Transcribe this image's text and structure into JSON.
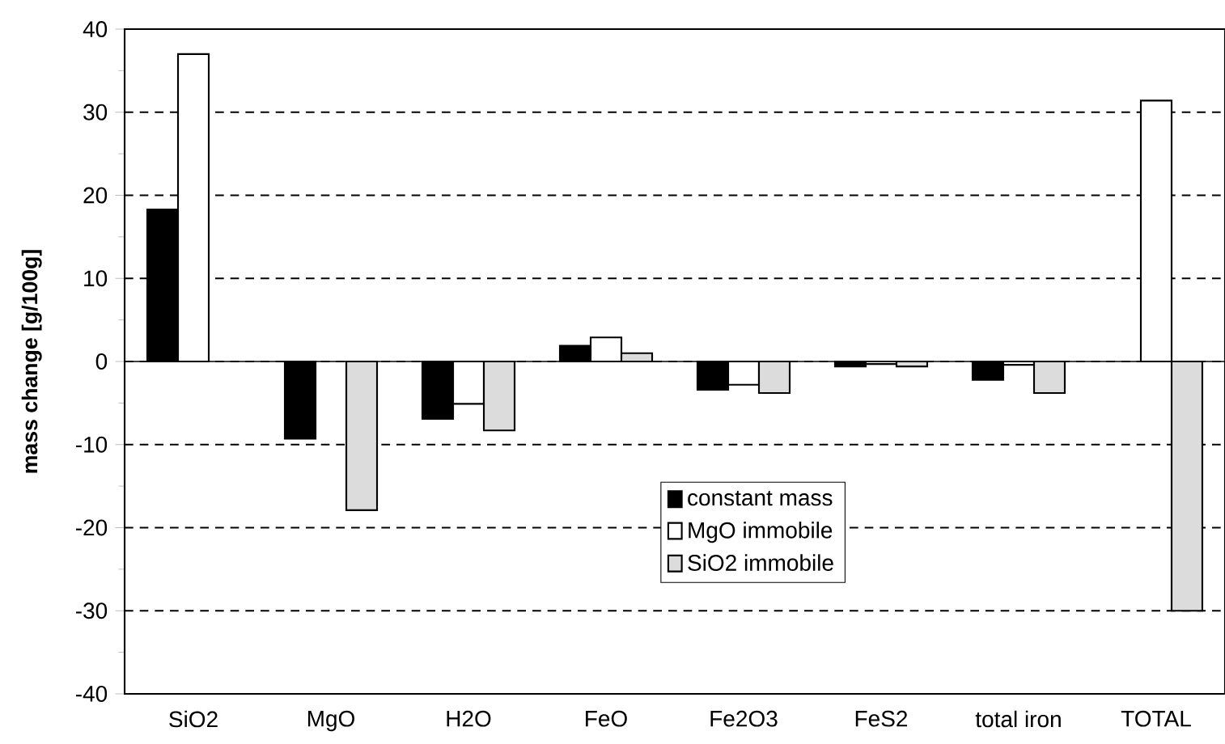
{
  "chart_data": {
    "type": "bar",
    "ylabel": "mass change [g/100g]",
    "categories": [
      "SiO2",
      "MgO",
      "H2O",
      "FeO",
      "Fe2O3",
      "FeS2",
      "total iron",
      "TOTAL"
    ],
    "series": [
      {
        "name": "constant mass",
        "color": "#000000",
        "values": [
          18.3,
          -9.3,
          -6.9,
          1.9,
          -3.4,
          -0.6,
          -2.2,
          null
        ]
      },
      {
        "name": "MgO immobile",
        "color": "#ffffff",
        "values": [
          37,
          null,
          -5.1,
          2.9,
          -2.8,
          -0.3,
          -0.4,
          31.4
        ]
      },
      {
        "name": "SiO2 immobile",
        "color": "#dcdcdc",
        "values": [
          null,
          -17.9,
          -8.3,
          1.0,
          -3.8,
          -0.6,
          -3.8,
          -30.0
        ]
      }
    ],
    "ylim": [
      -40,
      40
    ],
    "yticks": [
      -40,
      -30,
      -20,
      -10,
      0,
      10,
      20,
      30,
      40
    ],
    "grid": "y",
    "legend": "bottom"
  }
}
